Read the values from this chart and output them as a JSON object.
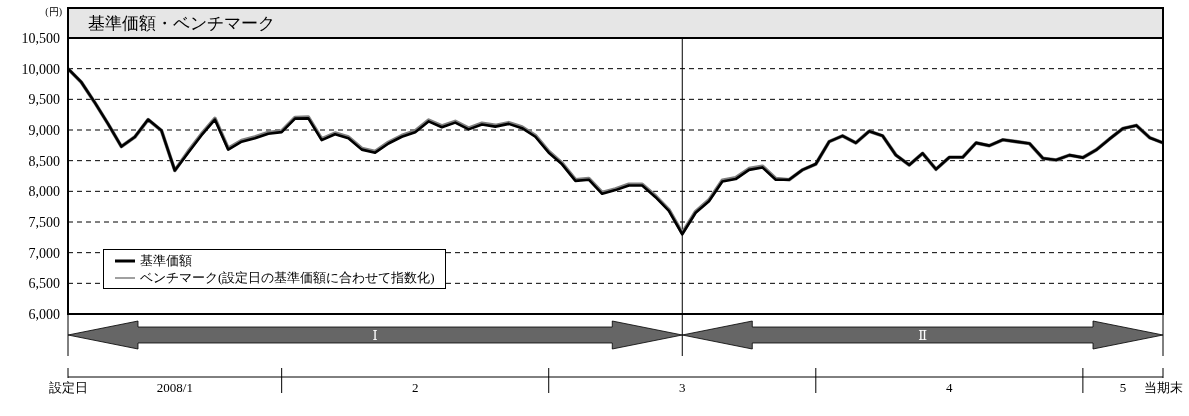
{
  "chart_data": {
    "type": "line",
    "title": "基準価額・ベンチマーク",
    "ylabel": "(円)",
    "categories": [
      "設定日",
      null,
      null,
      null,
      null,
      null,
      null,
      null,
      "2008/1",
      null,
      null,
      null,
      null,
      null,
      null,
      null,
      null,
      null,
      null,
      null,
      null,
      null,
      null,
      null,
      null,
      null,
      "2",
      null,
      null,
      null,
      null,
      null,
      null,
      null,
      null,
      null,
      null,
      null,
      null,
      null,
      null,
      null,
      null,
      null,
      null,
      null,
      "3",
      null,
      null,
      null,
      null,
      null,
      null,
      null,
      null,
      null,
      null,
      null,
      null,
      null,
      null,
      null,
      null,
      null,
      null,
      null,
      "4",
      null,
      null,
      null,
      null,
      null,
      null,
      null,
      null,
      null,
      null,
      null,
      null,
      "5",
      null,
      null,
      "当期末"
    ],
    "series": [
      {
        "name": "基準価額",
        "color": "#000000",
        "values": [
          10000,
          9780,
          9450,
          9100,
          8730,
          8885,
          9170,
          8990,
          8340,
          8630,
          8915,
          9170,
          8680,
          8810,
          8865,
          8940,
          8965,
          9185,
          9190,
          8835,
          8930,
          8865,
          8680,
          8630,
          8780,
          8890,
          8965,
          9140,
          9045,
          9120,
          9010,
          9090,
          9055,
          9100,
          9030,
          8890,
          8630,
          8440,
          8170,
          8190,
          7960,
          8020,
          8095,
          8095,
          7905,
          7680,
          7300,
          7650,
          7840,
          8160,
          8200,
          8350,
          8390,
          8190,
          8190,
          8350,
          8445,
          8810,
          8905,
          8790,
          8980,
          8905,
          8590,
          8430,
          8620,
          8360,
          8555,
          8555,
          8790,
          8745,
          8840,
          8810,
          8780,
          8540,
          8510,
          8590,
          8550,
          8675,
          8855,
          9025,
          9075,
          8875,
          8790
        ]
      },
      {
        "name": "ベンチマーク(設定日の基準価額に合わせて指数化)",
        "color": "#808080",
        "values": [
          10000,
          9780,
          9450,
          9100,
          8730,
          8885,
          9170,
          8990,
          8340,
          8650,
          8935,
          9190,
          8700,
          8830,
          8885,
          8960,
          8985,
          9205,
          9210,
          8855,
          8950,
          8885,
          8700,
          8650,
          8800,
          8910,
          8985,
          9160,
          9065,
          9140,
          9030,
          9110,
          9075,
          9120,
          9050,
          8910,
          8650,
          8460,
          8190,
          8210,
          7980,
          8040,
          8115,
          8115,
          7925,
          7700,
          7320,
          7670,
          7860,
          8180,
          8220,
          8370,
          8410,
          8210,
          8190,
          8350,
          8445,
          8810,
          8905,
          8790,
          8980,
          8905,
          8590,
          8430,
          8620,
          8360,
          8555,
          8555,
          8790,
          8745,
          8840,
          8810,
          8780,
          8540,
          8510,
          8590,
          8550,
          8675,
          8855,
          9025,
          9075,
          8875,
          8790
        ]
      }
    ],
    "ylim": [
      6000,
      10500
    ],
    "yticks": [
      {
        "value": 6000,
        "label": "6,000"
      },
      {
        "value": 6500,
        "label": "6,500"
      },
      {
        "value": 7000,
        "label": "7,000"
      },
      {
        "value": 7500,
        "label": "7,500"
      },
      {
        "value": 8000,
        "label": "8,000"
      },
      {
        "value": 8500,
        "label": "8,500"
      },
      {
        "value": 9000,
        "label": "9,000"
      },
      {
        "value": 9500,
        "label": "9,500"
      },
      {
        "value": 10000,
        "label": "10,000"
      },
      {
        "value": 10500,
        "label": "10,500"
      }
    ],
    "grid": "y",
    "line_style": "solid",
    "marker": "none",
    "legend": "bottom left",
    "ref_lines": [
      {
        "axis": "x",
        "value": "3",
        "label": null,
        "color": "#000000"
      }
    ],
    "annotations": [
      "Ⅰ",
      "Ⅱ"
    ]
  }
}
